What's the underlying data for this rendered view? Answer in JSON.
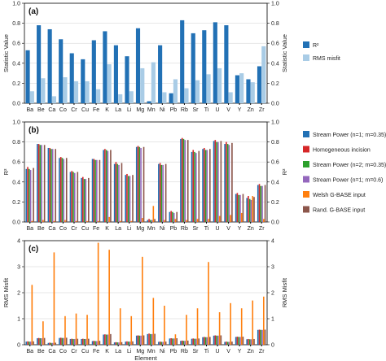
{
  "chart_data": [
    {
      "type": "bar",
      "panel_label": "(a)",
      "ylabel": "Statistic Value",
      "ylim": [
        0,
        1
      ],
      "yticks": [
        "0.0",
        "0.2",
        "0.4",
        "0.6",
        "0.8",
        "1.0"
      ],
      "categories": [
        "Ba",
        "Be",
        "Ca",
        "Co",
        "Cr",
        "Cu",
        "Fe",
        "K",
        "La",
        "Li",
        "Mg",
        "Mn",
        "Ni",
        "Pb",
        "Rb",
        "Sr",
        "Ti",
        "U",
        "V",
        "Y",
        "Zn",
        "Zr"
      ],
      "legend_position": "right",
      "series": [
        {
          "name": "R²",
          "color": "#2271b5",
          "values": [
            0.53,
            0.78,
            0.74,
            0.64,
            0.5,
            0.44,
            0.63,
            0.72,
            0.58,
            0.47,
            0.75,
            0.02,
            0.58,
            0.1,
            0.83,
            0.7,
            0.73,
            0.81,
            0.78,
            0.28,
            0.24,
            0.37
          ]
        },
        {
          "name": "RMS misfit",
          "color": "#a9cce6",
          "values": [
            0.12,
            0.25,
            0.07,
            0.26,
            0.22,
            0.22,
            0.14,
            0.39,
            0.09,
            0.12,
            0.35,
            0.41,
            0.11,
            0.24,
            0.15,
            0.23,
            0.29,
            0.35,
            0.11,
            0.3,
            0.21,
            0.57
          ]
        }
      ]
    },
    {
      "type": "bar",
      "panel_label": "(b)",
      "ylabel": "R²",
      "ylim": [
        0,
        1
      ],
      "yticks": [
        "0.0",
        "0.2",
        "0.4",
        "0.6",
        "0.8",
        "1.0"
      ],
      "categories": [
        "Ba",
        "Be",
        "Ca",
        "Co",
        "Cr",
        "Cu",
        "Fe",
        "K",
        "La",
        "Li",
        "Mg",
        "Mn",
        "Ni",
        "Pb",
        "Rb",
        "Sr",
        "Ti",
        "U",
        "V",
        "Y",
        "Zn",
        "Zr"
      ],
      "legend_position": "right",
      "series": [
        {
          "name": "Stream Power (n=1; m=0.35)",
          "color": "#2271b5",
          "values": [
            0.53,
            0.78,
            0.74,
            0.64,
            0.5,
            0.44,
            0.63,
            0.72,
            0.58,
            0.47,
            0.75,
            0.02,
            0.58,
            0.1,
            0.83,
            0.7,
            0.73,
            0.81,
            0.78,
            0.28,
            0.24,
            0.37
          ]
        },
        {
          "name": "Homogeneous incision",
          "color": "#d62728",
          "values": [
            0.55,
            0.78,
            0.74,
            0.65,
            0.51,
            0.45,
            0.63,
            0.73,
            0.6,
            0.48,
            0.76,
            0.03,
            0.59,
            0.11,
            0.84,
            0.72,
            0.74,
            0.82,
            0.8,
            0.29,
            0.26,
            0.38
          ]
        },
        {
          "name": "Stream Power (n=2; m=0.35)",
          "color": "#2ca02c",
          "values": [
            0.53,
            0.77,
            0.73,
            0.64,
            0.5,
            0.43,
            0.62,
            0.72,
            0.58,
            0.46,
            0.75,
            0.02,
            0.57,
            0.1,
            0.83,
            0.7,
            0.72,
            0.8,
            0.78,
            0.27,
            0.23,
            0.36
          ]
        },
        {
          "name": "Stream Power (n=1; m=0.6)",
          "color": "#9467bd",
          "values": [
            0.52,
            0.77,
            0.73,
            0.63,
            0.49,
            0.43,
            0.62,
            0.71,
            0.57,
            0.46,
            0.74,
            0.02,
            0.57,
            0.09,
            0.82,
            0.69,
            0.72,
            0.8,
            0.77,
            0.27,
            0.22,
            0.36
          ]
        },
        {
          "name": "Welsh G-BASE input",
          "color": "#ff7f0e",
          "values": [
            0.01,
            0.02,
            0.01,
            0.02,
            0.01,
            0.01,
            0.01,
            0.05,
            0.01,
            0.01,
            0.04,
            0.16,
            0.02,
            0.03,
            0.02,
            0.03,
            0.03,
            0.06,
            0.07,
            0.09,
            0.26,
            0.03
          ]
        },
        {
          "name": "Rand. G-BASE input",
          "color": "#8c564b",
          "values": [
            0.54,
            0.77,
            0.73,
            0.64,
            0.5,
            0.44,
            0.62,
            0.72,
            0.59,
            0.47,
            0.75,
            0.03,
            0.58,
            0.1,
            0.82,
            0.71,
            0.73,
            0.81,
            0.79,
            0.28,
            0.25,
            0.37
          ]
        }
      ]
    },
    {
      "type": "bar",
      "panel_label": "(c)",
      "ylabel": "RMS Misfit",
      "xlabel": "Element",
      "ylim": [
        0,
        4
      ],
      "yticks": [
        "0",
        "1",
        "2",
        "3",
        "4"
      ],
      "categories": [
        "Ba",
        "Be",
        "Ca",
        "Co",
        "Cr",
        "Cu",
        "Fe",
        "K",
        "La",
        "Li",
        "Mg",
        "Mn",
        "Ni",
        "Pb",
        "Rb",
        "Sr",
        "Ti",
        "U",
        "V",
        "Y",
        "Zn",
        "Zr"
      ],
      "series": [
        {
          "name": "Stream Power (n=1; m=0.35)",
          "color": "#2271b5",
          "values": [
            0.12,
            0.25,
            0.07,
            0.26,
            0.22,
            0.22,
            0.14,
            0.39,
            0.09,
            0.12,
            0.35,
            0.41,
            0.11,
            0.24,
            0.15,
            0.23,
            0.29,
            0.35,
            0.11,
            0.3,
            0.21,
            0.57
          ]
        },
        {
          "name": "Homogeneous incision",
          "color": "#d62728",
          "values": [
            0.13,
            0.26,
            0.08,
            0.27,
            0.23,
            0.23,
            0.15,
            0.4,
            0.1,
            0.13,
            0.36,
            0.43,
            0.12,
            0.25,
            0.16,
            0.24,
            0.3,
            0.36,
            0.12,
            0.31,
            0.22,
            0.58
          ]
        },
        {
          "name": "Stream Power (n=2; m=0.35)",
          "color": "#2ca02c",
          "values": [
            0.12,
            0.25,
            0.07,
            0.26,
            0.22,
            0.22,
            0.14,
            0.39,
            0.09,
            0.12,
            0.35,
            0.41,
            0.11,
            0.24,
            0.15,
            0.23,
            0.29,
            0.35,
            0.11,
            0.3,
            0.21,
            0.57
          ]
        },
        {
          "name": "Stream Power (n=1; m=0.6)",
          "color": "#9467bd",
          "values": [
            0.12,
            0.25,
            0.07,
            0.26,
            0.22,
            0.22,
            0.14,
            0.39,
            0.09,
            0.12,
            0.35,
            0.41,
            0.11,
            0.24,
            0.15,
            0.23,
            0.29,
            0.35,
            0.11,
            0.3,
            0.21,
            0.57
          ]
        },
        {
          "name": "Welsh G-BASE input",
          "color": "#ff7f0e",
          "values": [
            2.3,
            0.9,
            3.55,
            1.1,
            1.2,
            1.15,
            3.92,
            3.65,
            1.4,
            1.1,
            3.38,
            1.8,
            1.5,
            0.4,
            1.15,
            1.4,
            3.18,
            1.25,
            1.6,
            1.4,
            1.7,
            1.85
          ]
        },
        {
          "name": "Rand. G-BASE input",
          "color": "#8c564b",
          "values": [
            0.13,
            0.26,
            0.08,
            0.27,
            0.23,
            0.23,
            0.15,
            0.41,
            0.1,
            0.13,
            0.36,
            0.42,
            0.12,
            0.25,
            0.16,
            0.24,
            0.3,
            0.36,
            0.12,
            0.31,
            0.22,
            0.58
          ]
        }
      ]
    }
  ]
}
